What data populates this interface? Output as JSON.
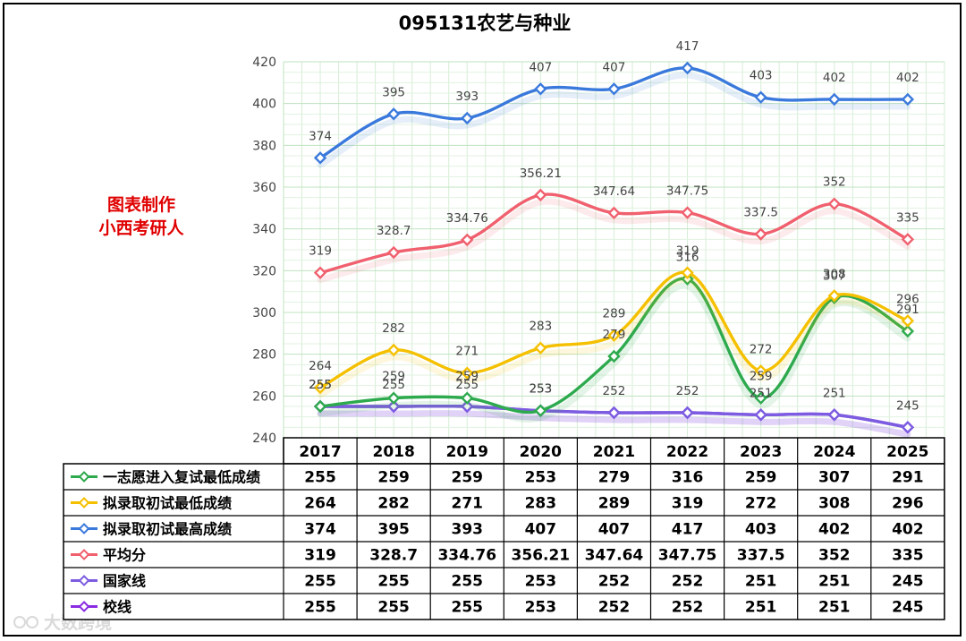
{
  "watermark": {
    "author_line1": "图表制作",
    "author_line2": "小西考研人",
    "corner_text": "大数跨境"
  },
  "chart_data": {
    "type": "line",
    "title": "095131农艺与种业",
    "categories": [
      "2017",
      "2018",
      "2019",
      "2020",
      "2021",
      "2022",
      "2023",
      "2024",
      "2025"
    ],
    "ylim": [
      240,
      420
    ],
    "yticks": [
      240,
      260,
      280,
      300,
      320,
      340,
      360,
      380,
      400,
      420
    ],
    "grid": true,
    "legend": "data-table",
    "series": [
      {
        "name": "一志愿进入复试最低成绩",
        "color": "#2eaa4e",
        "values": [
          255,
          259,
          259,
          253,
          279,
          316,
          259,
          307,
          291
        ],
        "labels": [
          "255",
          "259",
          "259",
          "253",
          "279",
          "316",
          "259",
          "307",
          "291"
        ]
      },
      {
        "name": "拟录取初试最低成绩",
        "color": "#f5c000",
        "values": [
          264,
          282,
          271,
          283,
          289,
          319,
          272,
          308,
          296
        ],
        "labels": [
          "264",
          "282",
          "271",
          "283",
          "289",
          "319",
          "272",
          "308",
          "296"
        ]
      },
      {
        "name": "拟录取初试最高成绩",
        "color": "#3a79dc",
        "values": [
          374,
          395,
          393,
          407,
          407,
          417,
          403,
          402,
          402
        ],
        "labels": [
          "374",
          "395",
          "393",
          "407",
          "407",
          "417",
          "403",
          "402",
          "402"
        ]
      },
      {
        "name": "平均分",
        "color": "#f0606e",
        "values": [
          319,
          328.7,
          334.76,
          356.21,
          347.64,
          347.75,
          337.5,
          352,
          335
        ],
        "labels": [
          "319",
          "328.7",
          "334.76",
          "356.21",
          "347.64",
          "347.75",
          "337.5",
          "352",
          "335"
        ]
      },
      {
        "name": "国家线",
        "color": "#7c5ce0",
        "values": [
          255,
          255,
          255,
          253,
          252,
          252,
          251,
          251,
          245
        ],
        "labels": [
          "255",
          "255",
          "255",
          "253",
          "252",
          "252",
          "251",
          "251",
          "245"
        ]
      },
      {
        "name": "校线",
        "color": "#8a2be2",
        "values": [
          255,
          255,
          255,
          253,
          252,
          252,
          251,
          251,
          245
        ],
        "labels": [
          "255",
          "255",
          "255",
          "253",
          "252",
          "252",
          "251",
          "251",
          "245"
        ]
      }
    ]
  }
}
